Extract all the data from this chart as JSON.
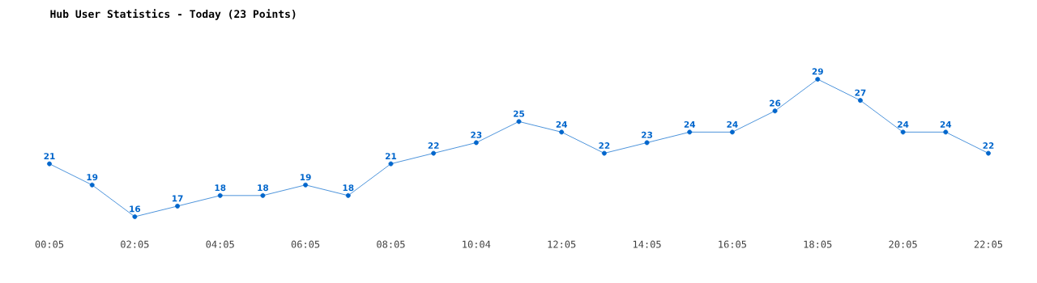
{
  "chart_data": {
    "type": "line",
    "title": "Hub User Statistics - Today (23 Points)",
    "categories": [
      "00:05",
      null,
      "02:05",
      null,
      "04:05",
      null,
      "06:05",
      null,
      "08:05",
      null,
      "10:04",
      null,
      "12:05",
      null,
      "14:05",
      null,
      "16:05",
      null,
      "18:05",
      null,
      "20:05",
      null,
      "22:05"
    ],
    "values": [
      21,
      19,
      16,
      17,
      18,
      18,
      19,
      18,
      21,
      22,
      23,
      25,
      24,
      22,
      23,
      24,
      24,
      26,
      29,
      27,
      24,
      24,
      22
    ],
    "color": "#0066cc",
    "marker": "circle",
    "line_style": "solid",
    "data_labels": true
  }
}
